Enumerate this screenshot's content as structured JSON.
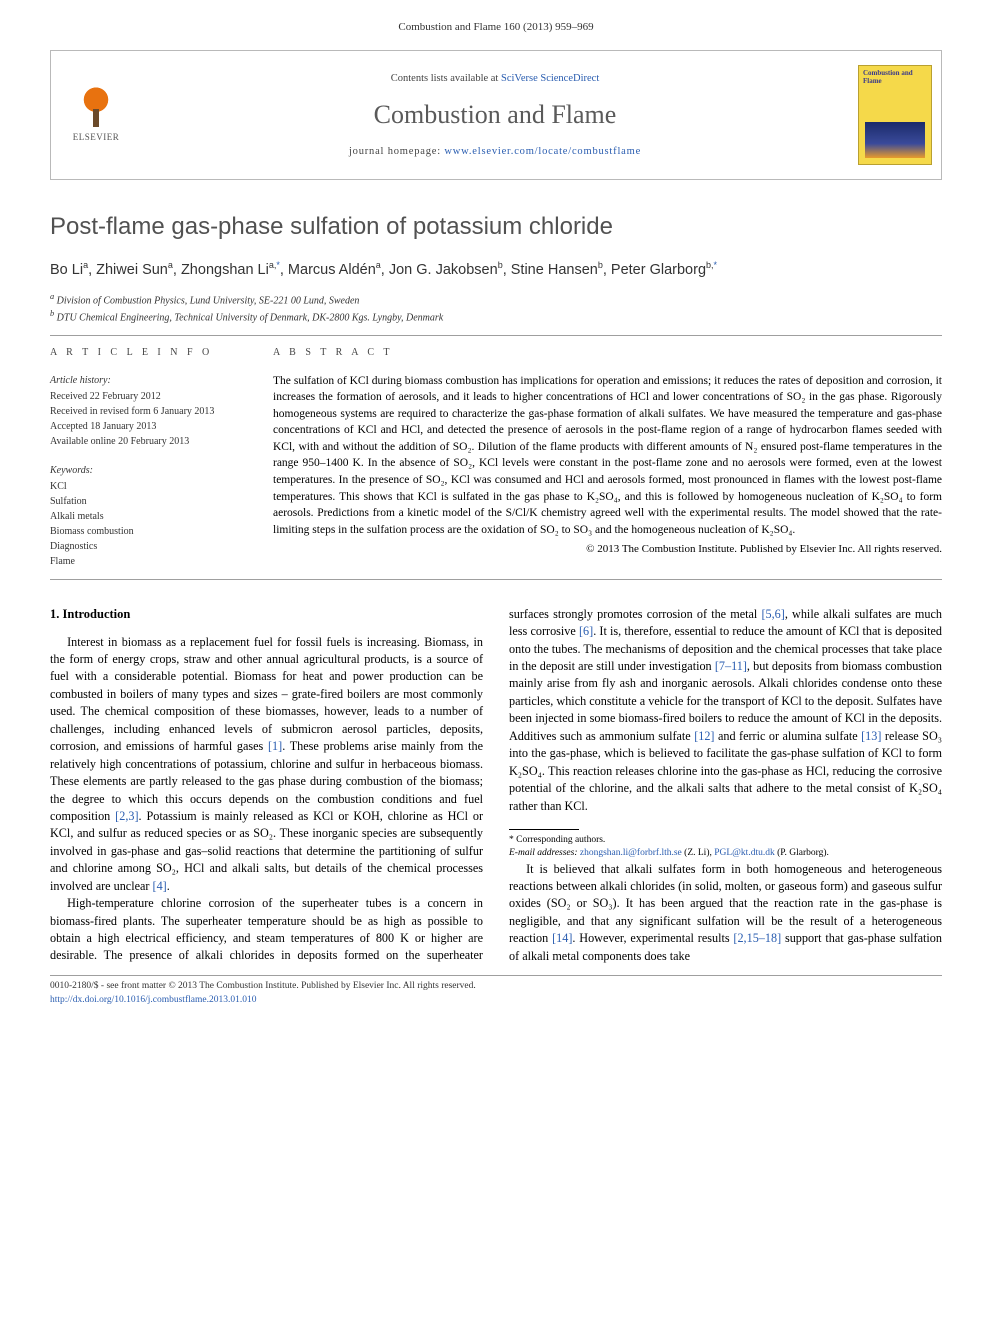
{
  "citation": "Combustion and Flame 160 (2013) 959–969",
  "header": {
    "publisher_logo_label": "ELSEVIER",
    "contents_prefix": "Contents lists available at ",
    "contents_link": "SciVerse ScienceDirect",
    "journal_name": "Combustion and Flame",
    "homepage_prefix": "journal homepage: ",
    "homepage_url": "www.elsevier.com/locate/combustflame",
    "cover_title": "Combustion and Flame"
  },
  "title": "Post-flame gas-phase sulfation of potassium chloride",
  "authors_html_parts": [
    {
      "name": "Bo Li",
      "sup": "a"
    },
    {
      "name": "Zhiwei Sun",
      "sup": "a"
    },
    {
      "name": "Zhongshan Li",
      "sup": "a,*"
    },
    {
      "name": "Marcus Aldén",
      "sup": "a"
    },
    {
      "name": "Jon G. Jakobsen",
      "sup": "b"
    },
    {
      "name": "Stine Hansen",
      "sup": "b"
    },
    {
      "name": "Peter Glarborg",
      "sup": "b,*"
    }
  ],
  "affiliations": [
    {
      "sup": "a",
      "text": "Division of Combustion Physics, Lund University, SE-221 00 Lund, Sweden"
    },
    {
      "sup": "b",
      "text": "DTU Chemical Engineering, Technical University of Denmark, DK-2800 Kgs. Lyngby, Denmark"
    }
  ],
  "info": {
    "section_label": "A R T I C L E   I N F O",
    "history_label": "Article history:",
    "history": [
      "Received 22 February 2012",
      "Received in revised form 6 January 2013",
      "Accepted 18 January 2013",
      "Available online 20 February 2013"
    ],
    "keywords_label": "Keywords:",
    "keywords": [
      "KCl",
      "Sulfation",
      "Alkali metals",
      "Biomass combustion",
      "Diagnostics",
      "Flame"
    ]
  },
  "abstract": {
    "section_label": "A B S T R A C T",
    "text": "The sulfation of KCl during biomass combustion has implications for operation and emissions; it reduces the rates of deposition and corrosion, it increases the formation of aerosols, and it leads to higher concentrations of HCl and lower concentrations of SO₂ in the gas phase. Rigorously homogeneous systems are required to characterize the gas-phase formation of alkali sulfates. We have measured the temperature and gas-phase concentrations of KCl and HCl, and detected the presence of aerosols in the post-flame region of a range of hydrocarbon flames seeded with KCl, with and without the addition of SO₂. Dilution of the flame products with different amounts of N₂ ensured post-flame temperatures in the range 950–1400 K. In the absence of SO₂, KCl levels were constant in the post-flame zone and no aerosols were formed, even at the lowest temperatures. In the presence of SO₂, KCl was consumed and HCl and aerosols formed, most pronounced in flames with the lowest post-flame temperatures. This shows that KCl is sulfated in the gas phase to K₂SO₄, and this is followed by homogeneous nucleation of K₂SO₄ to form aerosols. Predictions from a kinetic model of the S/Cl/K chemistry agreed well with the experimental results. The model showed that the rate-limiting steps in the sulfation process are the oxidation of SO₂ to SO₃ and the homogeneous nucleation of K₂SO₄.",
    "copyright": "© 2013 The Combustion Institute. Published by Elsevier Inc. All rights reserved."
  },
  "body": {
    "heading": "1. Introduction",
    "p1": "Interest in biomass as a replacement fuel for fossil fuels is increasing. Biomass, in the form of energy crops, straw and other annual agricultural products, is a source of fuel with a considerable potential. Biomass for heat and power production can be combusted in boilers of many types and sizes – grate-fired boilers are most commonly used. The chemical composition of these biomasses, however, leads to a number of challenges, including enhanced levels of submicron aerosol particles, deposits, corrosion, and emissions of harmful gases [1]. These problems arise mainly from the relatively high concentrations of potassium, chlorine and sulfur in herbaceous biomass. These elements are partly released to the gas phase during combustion of the biomass; the degree to which this occurs depends on the combustion conditions and fuel composition [2,3]. Potassium is mainly released as KCl or KOH, chlorine as HCl or KCl, and sulfur as reduced species or as SO₂. These inorganic species are subsequently involved in gas-phase and gas–solid reactions that determine the partitioning of sulfur and chlorine among SO₂, HCl and alkali salts, but details of the chemical processes involved are unclear [4].",
    "p2": "High-temperature chlorine corrosion of the superheater tubes is a concern in biomass-fired plants. The superheater temperature should be as high as possible to obtain a high electrical efficiency, and steam temperatures of 800 K or higher are desirable. The presence of alkali chlorides in deposits formed on the superheater surfaces strongly promotes corrosion of the metal [5,6], while alkali sulfates are much less corrosive [6]. It is, therefore, essential to reduce the amount of KCl that is deposited onto the tubes. The mechanisms of deposition and the chemical processes that take place in the deposit are still under investigation [7–11], but deposits from biomass combustion mainly arise from fly ash and inorganic aerosols. Alkali chlorides condense onto these particles, which constitute a vehicle for the transport of KCl to the deposit. Sulfates have been injected in some biomass-fired boilers to reduce the amount of KCl in the deposits. Additives such as ammonium sulfate [12] and ferric or alumina sulfate [13] release SO₃ into the gas-phase, which is believed to facilitate the gas-phase sulfation of KCl to form K₂SO₄. This reaction releases chlorine into the gas-phase as HCl, reducing the corrosive potential of the chlorine, and the alkali salts that adhere to the metal consist of K₂SO₄ rather than KCl.",
    "p3": "It is believed that alkali sulfates form in both homogeneous and heterogeneous reactions between alkali chlorides (in solid, molten, or gaseous form) and gaseous sulfur oxides (SO₂ or SO₃). It has been argued that the reaction rate in the gas-phase is negligible, and that any significant sulfation will be the result of a heterogeneous reaction [14]. However, experimental results [2,15–18] support that gas-phase sulfation of alkali metal components does take"
  },
  "footnotes": {
    "corr_label": "* Corresponding authors.",
    "email_label": "E-mail addresses:",
    "emails": [
      {
        "addr": "zhongshan.li@forbrf.lth.se",
        "who": "(Z. Li)"
      },
      {
        "addr": "PGL@kt.dtu.dk",
        "who": "(P. Glarborg)"
      }
    ]
  },
  "bottom": {
    "issn_line": "0010-2180/$ - see front matter © 2013 The Combustion Institute. Published by Elsevier Inc. All rights reserved.",
    "doi": "http://dx.doi.org/10.1016/j.combustflame.2013.01.010"
  },
  "colors": {
    "link": "#2a5db0",
    "rule": "#9f9f9f",
    "title_gray": "#515151",
    "cover_bg": "#f5d94a"
  }
}
